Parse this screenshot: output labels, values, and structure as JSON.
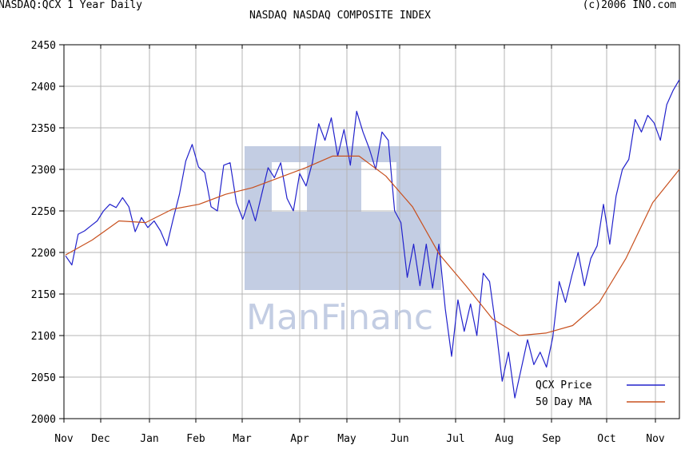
{
  "header": {
    "left": "NASDAQ:QCX 1 Year Daily",
    "right": "(c)2006 INO.com"
  },
  "watermark": {
    "text": "ManFinanc"
  },
  "chart_data": {
    "type": "line",
    "title": "NASDAQ NASDAQ COMPOSITE INDEX",
    "xlabel": "",
    "ylabel": "",
    "x_ticks": [
      "Nov",
      "Dec",
      "Jan",
      "Feb",
      "Mar",
      "Apr",
      "May",
      "Jun",
      "Jul",
      "Aug",
      "Sep",
      "Oct",
      "Nov"
    ],
    "y_ticks": [
      2000,
      2050,
      2100,
      2150,
      2200,
      2250,
      2300,
      2350,
      2400,
      2450
    ],
    "ylim": [
      2000,
      2450
    ],
    "grid": true,
    "legend_position": "bottom-right",
    "series": [
      {
        "name": "QCX Price",
        "color": "#2222cc",
        "values": [
          [
            "Nov",
            2196
          ],
          [
            "Nov",
            2185
          ],
          [
            "Nov",
            2222
          ],
          [
            "Nov",
            2226
          ],
          [
            "Nov",
            2232
          ],
          [
            "Dec",
            2238
          ],
          [
            "Dec",
            2250
          ],
          [
            "Dec",
            2258
          ],
          [
            "Dec",
            2254
          ],
          [
            "Dec",
            2266
          ],
          [
            "Dec",
            2255
          ],
          [
            "Dec",
            2225
          ],
          [
            "Dec",
            2242
          ],
          [
            "Dec",
            2230
          ],
          [
            "Dec",
            2238
          ],
          [
            "Dec",
            2226
          ],
          [
            "Jan",
            2208
          ],
          [
            "Jan",
            2240
          ],
          [
            "Jan",
            2270
          ],
          [
            "Jan",
            2310
          ],
          [
            "Jan",
            2330
          ],
          [
            "Jan",
            2303
          ],
          [
            "Jan",
            2296
          ],
          [
            "Jan",
            2255
          ],
          [
            "Feb",
            2250
          ],
          [
            "Feb",
            2305
          ],
          [
            "Feb",
            2308
          ],
          [
            "Feb",
            2260
          ],
          [
            "Feb",
            2240
          ],
          [
            "Feb",
            2263
          ],
          [
            "Mar",
            2238
          ],
          [
            "Mar",
            2270
          ],
          [
            "Mar",
            2302
          ],
          [
            "Mar",
            2290
          ],
          [
            "Mar",
            2308
          ],
          [
            "Mar",
            2265
          ],
          [
            "Mar",
            2250
          ],
          [
            "Mar",
            2295
          ],
          [
            "Mar",
            2280
          ],
          [
            "Mar",
            2308
          ],
          [
            "Apr",
            2355
          ],
          [
            "Apr",
            2335
          ],
          [
            "Apr",
            2362
          ],
          [
            "Apr",
            2316
          ],
          [
            "Apr",
            2348
          ],
          [
            "Apr",
            2305
          ],
          [
            "Apr",
            2370
          ],
          [
            "Apr",
            2345
          ],
          [
            "Apr",
            2325
          ],
          [
            "May",
            2300
          ],
          [
            "May",
            2345
          ],
          [
            "May",
            2335
          ],
          [
            "May",
            2250
          ],
          [
            "May",
            2236
          ],
          [
            "May",
            2170
          ],
          [
            "May",
            2210
          ],
          [
            "Jun",
            2160
          ],
          [
            "Jun",
            2210
          ],
          [
            "Jun",
            2157
          ],
          [
            "Jun",
            2210
          ],
          [
            "Jun",
            2132
          ],
          [
            "Jun",
            2075
          ],
          [
            "Jun",
            2143
          ],
          [
            "Jun",
            2105
          ],
          [
            "Jul",
            2138
          ],
          [
            "Jul",
            2100
          ],
          [
            "Jul",
            2175
          ],
          [
            "Jul",
            2165
          ],
          [
            "Jul",
            2110
          ],
          [
            "Jul",
            2045
          ],
          [
            "Jul",
            2080
          ],
          [
            "Jul",
            2025
          ],
          [
            "Aug",
            2060
          ],
          [
            "Aug",
            2095
          ],
          [
            "Aug",
            2065
          ],
          [
            "Aug",
            2080
          ],
          [
            "Aug",
            2062
          ],
          [
            "Aug",
            2098
          ],
          [
            "Sep",
            2165
          ],
          [
            "Sep",
            2140
          ],
          [
            "Sep",
            2172
          ],
          [
            "Sep",
            2200
          ],
          [
            "Sep",
            2160
          ],
          [
            "Sep",
            2193
          ],
          [
            "Sep",
            2208
          ],
          [
            "Sep",
            2258
          ],
          [
            "Oct",
            2210
          ],
          [
            "Oct",
            2268
          ],
          [
            "Oct",
            2300
          ],
          [
            "Oct",
            2312
          ],
          [
            "Oct",
            2360
          ],
          [
            "Oct",
            2345
          ],
          [
            "Oct",
            2365
          ],
          [
            "Oct",
            2356
          ],
          [
            "Nov",
            2335
          ],
          [
            "Nov",
            2378
          ],
          [
            "Nov",
            2395
          ],
          [
            "Nov",
            2408
          ]
        ]
      },
      {
        "name": "50 Day MA",
        "color": "#c8501e",
        "values": [
          [
            "Nov",
            2197
          ],
          [
            "Dec",
            2215
          ],
          [
            "Dec",
            2238
          ],
          [
            "Jan",
            2236
          ],
          [
            "Jan",
            2252
          ],
          [
            "Feb",
            2258
          ],
          [
            "Mar",
            2270
          ],
          [
            "Mar",
            2278
          ],
          [
            "Apr",
            2290
          ],
          [
            "Apr",
            2302
          ],
          [
            "May",
            2316
          ],
          [
            "May",
            2316
          ],
          [
            "Jun",
            2292
          ],
          [
            "Jun",
            2255
          ],
          [
            "Jul",
            2198
          ],
          [
            "Jul",
            2160
          ],
          [
            "Aug",
            2120
          ],
          [
            "Aug",
            2100
          ],
          [
            "Sep",
            2103
          ],
          [
            "Sep",
            2112
          ],
          [
            "Oct",
            2140
          ],
          [
            "Oct",
            2193
          ],
          [
            "Nov",
            2260
          ],
          [
            "Nov",
            2300
          ]
        ]
      }
    ]
  }
}
